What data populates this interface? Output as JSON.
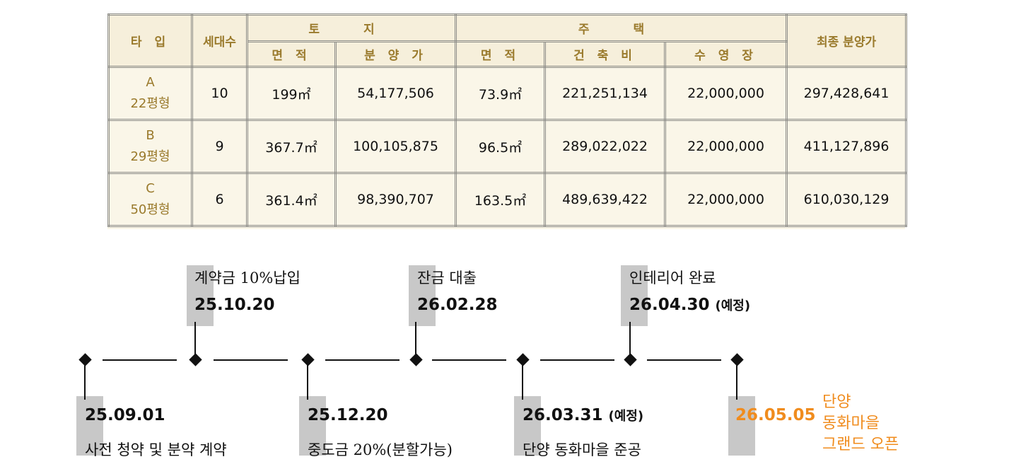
{
  "table": {
    "headers": {
      "type": "타 입",
      "households": "세대수",
      "land": "토    지",
      "housing": "주    택",
      "final_price": "최종 분양가",
      "land_area": "면  적",
      "land_price": "분 양 가",
      "house_area": "면  적",
      "construction": "건 축 비",
      "pool": "수 영 장"
    },
    "rows": [
      {
        "type": "A",
        "size": "22평형",
        "households": "10",
        "land_area": "199㎡",
        "land_price": "54,177,506",
        "house_area": "73.9㎡",
        "construction": "221,251,134",
        "pool": "22,000,000",
        "final": "297,428,641"
      },
      {
        "type": "B",
        "size": "29평형",
        "households": "9",
        "land_area": "367.7㎡",
        "land_price": "100,105,875",
        "house_area": "96.5㎡",
        "construction": "289,022,022",
        "pool": "22,000,000",
        "final": "411,127,896"
      },
      {
        "type": "C",
        "size": "50평형",
        "households": "6",
        "land_area": "361.4㎡",
        "land_price": "98,390,707",
        "house_area": "163.5㎡",
        "construction": "489,639,422",
        "pool": "22,000,000",
        "final": "610,030,129"
      }
    ]
  },
  "timeline": {
    "milestones": [
      {
        "date": "25.09.01",
        "note": "",
        "desc": "사전 청약 및 분약 계약"
      },
      {
        "date": "25.10.20",
        "note": "",
        "desc": "계약금 10%납입"
      },
      {
        "date": "25.12.20",
        "note": "",
        "desc": "중도금 20%(분할가능)"
      },
      {
        "date": "26.02.28",
        "note": "",
        "desc": "잔금 대출"
      },
      {
        "date": "26.03.31",
        "note": "(예정)",
        "desc": "단양 동화마을 준공"
      },
      {
        "date": "26.04.30",
        "note": "(예정)",
        "desc": "인테리어 완료"
      },
      {
        "date": "26.05.05",
        "note": "",
        "desc_lines": [
          "단양",
          "동화마을",
          "그랜드 오픈"
        ]
      }
    ]
  },
  "colors": {
    "header_text": "#9a7a2c",
    "table_bg": "#faf6e8",
    "highlight_orange": "#f08c1e",
    "marker_box": "#c8c8c8"
  }
}
